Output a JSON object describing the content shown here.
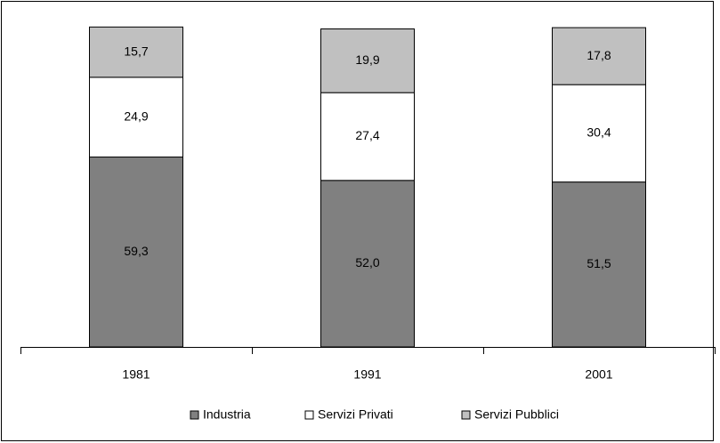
{
  "chart_data": {
    "type": "stacked-bar",
    "categories": [
      "1981",
      "1991",
      "2001"
    ],
    "series": [
      {
        "name": "Industria",
        "color": "#808080",
        "values": [
          59.3,
          52.0,
          51.5
        ],
        "value_labels": [
          "59,3",
          "52,0",
          "51,5"
        ]
      },
      {
        "name": "Servizi Privati",
        "color": "#ffffff",
        "values": [
          24.9,
          27.4,
          30.4
        ],
        "value_labels": [
          "24,9",
          "27,4",
          "30,4"
        ]
      },
      {
        "name": "Servizi Pubblici",
        "color": "#c0c0c0",
        "values": [
          15.7,
          19.9,
          17.8
        ],
        "value_labels": [
          "15,7",
          "19,9",
          "17,8"
        ]
      }
    ],
    "ylim": [
      0,
      100
    ],
    "legend": "bottom"
  }
}
